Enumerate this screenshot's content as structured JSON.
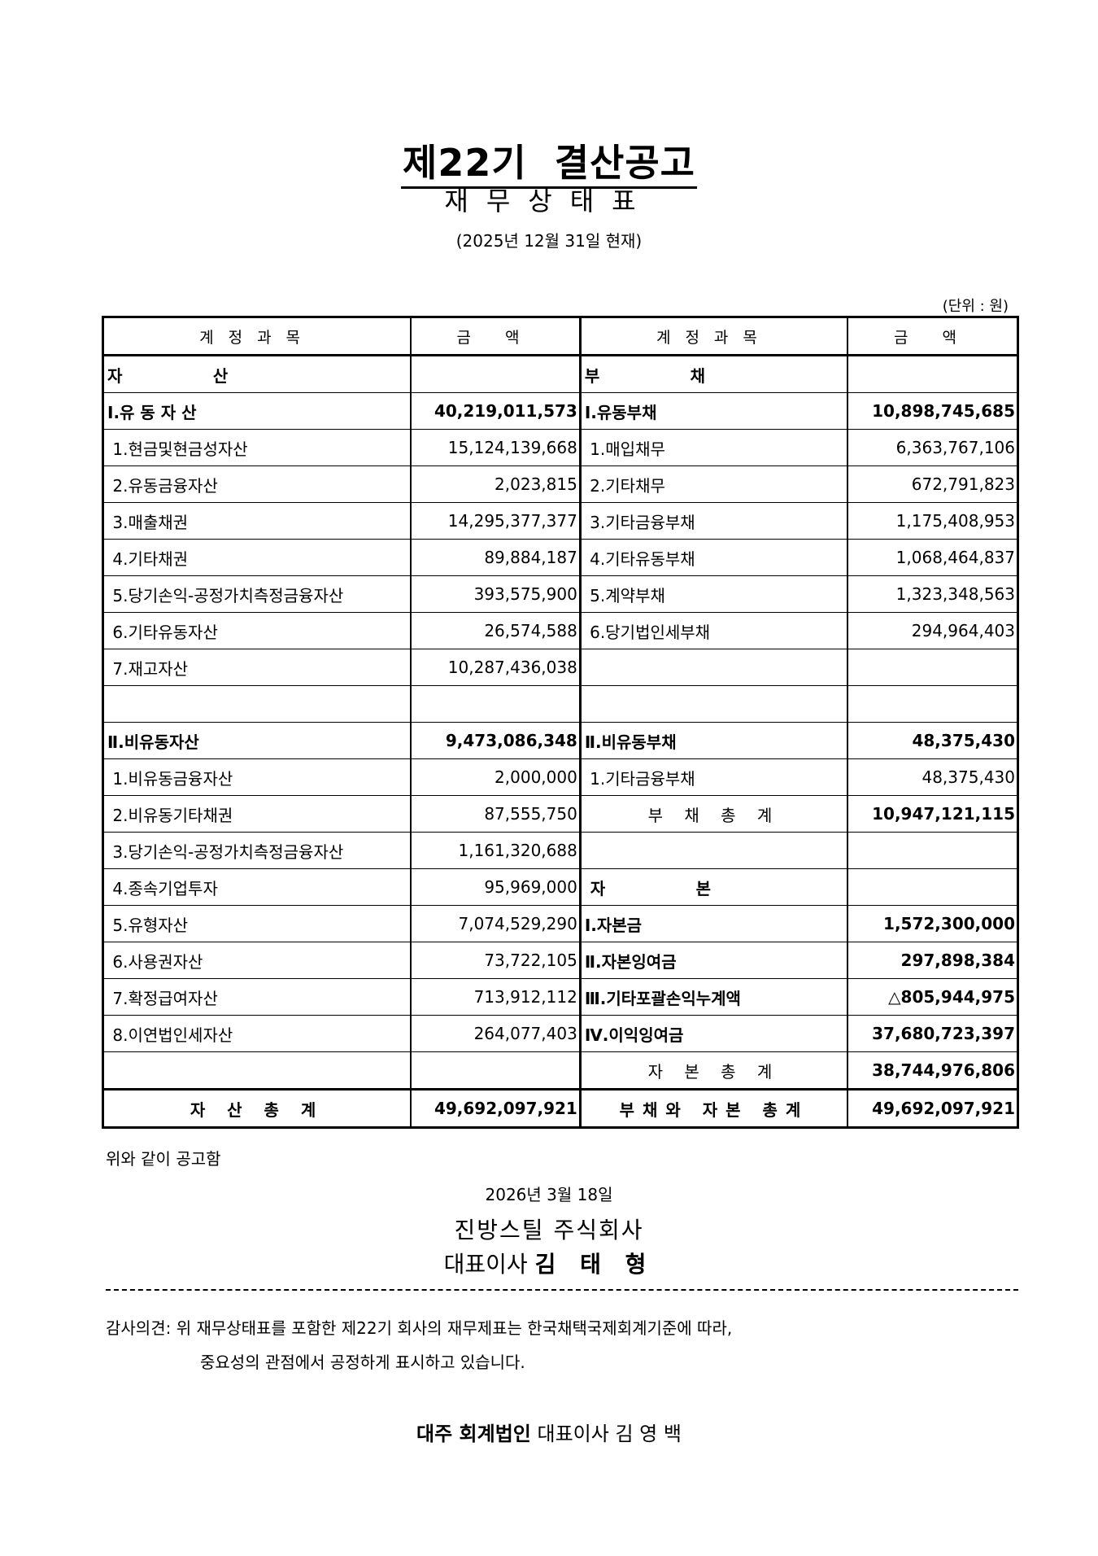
{
  "header": {
    "title": "제22기  결산공고",
    "subtitle": "재무상태표",
    "as_of": "(2025년 12월 31일 현재)",
    "unit": "(단위 : 원)"
  },
  "table": {
    "columns": [
      "계정과목",
      "금  액",
      "계정과목",
      "금  액"
    ],
    "rows": [
      {
        "l": "자                산",
        "la": "",
        "r": "부                채",
        "ra": "",
        "lb": true,
        "rb": true
      },
      {
        "l": "Ⅰ.유 동 자 산",
        "la": "40,219,011,573",
        "r": "Ⅰ.유동부채",
        "ra": "10,898,745,685",
        "lb": true,
        "rb": true
      },
      {
        "l": " 1.현금및현금성자산",
        "la": "15,124,139,668",
        "r": " 1.매입채무",
        "ra": "6,363,767,106"
      },
      {
        "l": " 2.유동금융자산",
        "la": "2,023,815",
        "r": " 2.기타채무",
        "ra": "672,791,823"
      },
      {
        "l": " 3.매출채권",
        "la": "14,295,377,377",
        "r": " 3.기타금융부채",
        "ra": "1,175,408,953"
      },
      {
        "l": " 4.기타채권",
        "la": "89,884,187",
        "r": " 4.기타유동부채",
        "ra": "1,068,464,837"
      },
      {
        "l": " 5.당기손익-공정가치측정금융자산",
        "la": "393,575,900",
        "r": " 5.계약부채",
        "ra": "1,323,348,563"
      },
      {
        "l": " 6.기타유동자산",
        "la": "26,574,588",
        "r": " 6.당기법인세부채",
        "ra": "294,964,403"
      },
      {
        "l": " 7.재고자산",
        "la": "10,287,436,038",
        "r": "",
        "ra": ""
      },
      {
        "l": "",
        "la": "",
        "r": "",
        "ra": ""
      },
      {
        "l": "Ⅱ.비유동자산",
        "la": "9,473,086,348",
        "r": "Ⅱ.비유동부채",
        "ra": "48,375,430",
        "lb": true,
        "rb": true
      },
      {
        "l": " 1.비유동금융자산",
        "la": "2,000,000",
        "r": " 1.기타금융부채",
        "ra": "48,375,430"
      },
      {
        "l": " 2.비유동기타채권",
        "la": "87,555,750",
        "r": "부 채 총 계",
        "ra": "10,947,121,115",
        "rc": true
      },
      {
        "l": " 3.당기손익-공정가치측정금융자산",
        "la": "1,161,320,688",
        "r": "",
        "ra": ""
      },
      {
        "l": " 4.종속기업투자",
        "la": "95,969,000",
        "r": " 자                본",
        "ra": "",
        "rb": true
      },
      {
        "l": " 5.유형자산",
        "la": "7,074,529,290",
        "r": "Ⅰ.자본금",
        "ra": "1,572,300,000",
        "rb": true
      },
      {
        "l": " 6.사용권자산",
        "la": "73,722,105",
        "r": "Ⅱ.자본잉여금",
        "ra": "297,898,384",
        "rb": true
      },
      {
        "l": " 7.확정급여자산",
        "la": "713,912,112",
        "r": "Ⅲ.기타포괄손익누계액",
        "ra": "△805,944,975",
        "rb": true
      },
      {
        "l": " 8.이연법인세자산",
        "la": "264,077,403",
        "r": "Ⅳ.이익잉여금",
        "ra": "37,680,723,397",
        "rb": true
      },
      {
        "l": "",
        "la": "",
        "r": "자 본 총 계",
        "ra": "38,744,976,806",
        "rc": true
      }
    ],
    "total": {
      "l": "자 산 총 계",
      "la": "49,692,097,921",
      "r": "부채와 자본 총계",
      "ra": "49,692,097,921"
    }
  },
  "footer": {
    "notice": "위와 같이 공고함",
    "date": "2026년 3월 18일",
    "company": "진방스틸 주식회사",
    "ceo_title": "대표이사",
    "ceo_name": "김 태 형",
    "audit_line1": "감사의견: 위 재무상태표를 포함한 제22기 회사의 재무제표는 한국채택국제회계기준에 따라,",
    "audit_line2": "중요성의 관점에서 공정하게 표시하고 있습니다.",
    "auditor_firm": "대주 회계법인",
    "auditor_rep": "대표이사 김 영 백"
  }
}
